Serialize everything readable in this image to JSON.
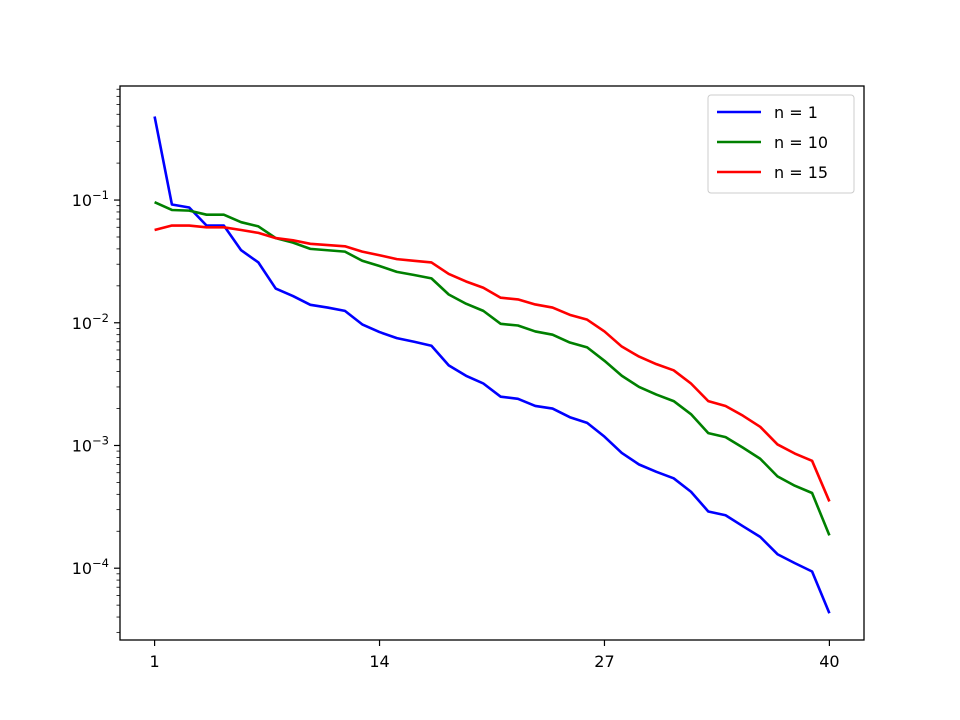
{
  "chart_data": {
    "type": "line",
    "title": "",
    "xlabel": "",
    "ylabel": "",
    "x_ticks": [
      1,
      14,
      27,
      40
    ],
    "y_scale": "log",
    "y_ticks": [
      {
        "value": 0.1,
        "base": "10",
        "exp": "−1"
      },
      {
        "value": 0.01,
        "base": "10",
        "exp": "−2"
      },
      {
        "value": 0.001,
        "base": "10",
        "exp": "−3"
      },
      {
        "value": 0.0001,
        "base": "10",
        "exp": "−4"
      }
    ],
    "xlim": [
      -1,
      42
    ],
    "ylim": [
      2.6e-05,
      0.85
    ],
    "grid": false,
    "legend_position": "top-right",
    "x": [
      1,
      2,
      3,
      4,
      5,
      6,
      7,
      8,
      9,
      10,
      11,
      12,
      13,
      14,
      15,
      16,
      17,
      18,
      19,
      20,
      21,
      22,
      23,
      24,
      25,
      26,
      27,
      28,
      29,
      30,
      31,
      32,
      33,
      34,
      35,
      36,
      37,
      38,
      39,
      40
    ],
    "series": [
      {
        "name": "n = 1",
        "color": "#0000ff",
        "values": [
          0.48,
          0.092,
          0.087,
          0.062,
          0.062,
          0.039,
          0.031,
          0.019,
          0.0165,
          0.014,
          0.0133,
          0.0125,
          0.0097,
          0.0084,
          0.0075,
          0.007,
          0.0065,
          0.0045,
          0.0037,
          0.0032,
          0.0025,
          0.0024,
          0.0021,
          0.002,
          0.0017,
          0.00153,
          0.00118,
          0.00087,
          0.0007,
          0.00061,
          0.00054,
          0.00042,
          0.00029,
          0.00027,
          0.00022,
          0.00018,
          0.00013,
          0.00011,
          9.4e-05,
          4.3e-05
        ]
      },
      {
        "name": "n = 10",
        "color": "#008000",
        "values": [
          0.096,
          0.083,
          0.082,
          0.076,
          0.076,
          0.066,
          0.061,
          0.049,
          0.045,
          0.04,
          0.039,
          0.038,
          0.032,
          0.029,
          0.026,
          0.0245,
          0.023,
          0.017,
          0.0143,
          0.0125,
          0.0098,
          0.0095,
          0.0085,
          0.008,
          0.0069,
          0.0063,
          0.0049,
          0.0037,
          0.003,
          0.0026,
          0.0023,
          0.0018,
          0.00126,
          0.00117,
          0.00096,
          0.00078,
          0.00056,
          0.00047,
          0.00041,
          0.000185
        ]
      },
      {
        "name": "n = 15",
        "color": "#ff0000",
        "values": [
          0.057,
          0.062,
          0.062,
          0.06,
          0.06,
          0.057,
          0.054,
          0.049,
          0.047,
          0.044,
          0.043,
          0.042,
          0.038,
          0.0355,
          0.033,
          0.032,
          0.031,
          0.025,
          0.0217,
          0.0193,
          0.016,
          0.0155,
          0.0141,
          0.0133,
          0.0116,
          0.0106,
          0.0085,
          0.0064,
          0.0053,
          0.0046,
          0.0041,
          0.0032,
          0.0023,
          0.0021,
          0.00175,
          0.00142,
          0.00102,
          0.00086,
          0.00075,
          0.00035
        ]
      }
    ]
  }
}
